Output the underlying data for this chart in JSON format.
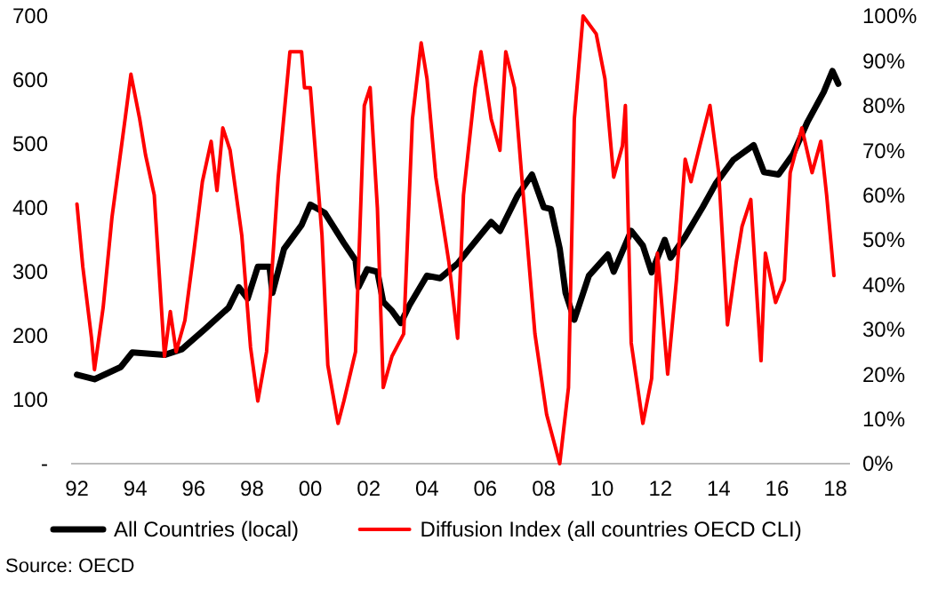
{
  "chart_data": {
    "type": "line",
    "xlim": [
      1991.8,
      2018.5
    ],
    "xticks": [
      {
        "value": 1992,
        "label": "92"
      },
      {
        "value": 1994,
        "label": "94"
      },
      {
        "value": 1996,
        "label": "96"
      },
      {
        "value": 1998,
        "label": "98"
      },
      {
        "value": 2000,
        "label": "00"
      },
      {
        "value": 2002,
        "label": "02"
      },
      {
        "value": 2004,
        "label": "04"
      },
      {
        "value": 2006,
        "label": "06"
      },
      {
        "value": 2008,
        "label": "08"
      },
      {
        "value": 2010,
        "label": "10"
      },
      {
        "value": 2012,
        "label": "12"
      },
      {
        "value": 2014,
        "label": "14"
      },
      {
        "value": 2016,
        "label": "16"
      },
      {
        "value": 2018,
        "label": "18"
      }
    ],
    "ylim": [
      0,
      700
    ],
    "yticks": [
      {
        "value": 0,
        "label": "-"
      },
      100,
      200,
      300,
      400,
      500,
      600,
      700
    ],
    "y2lim": [
      0,
      100
    ],
    "y2ticks": [
      {
        "value": 0,
        "label": "0%"
      },
      {
        "value": 10,
        "label": "10%"
      },
      {
        "value": 20,
        "label": "20%"
      },
      {
        "value": 30,
        "label": "30%"
      },
      {
        "value": 40,
        "label": "40%"
      },
      {
        "value": 50,
        "label": "50%"
      },
      {
        "value": 60,
        "label": "60%"
      },
      {
        "value": 70,
        "label": "70%"
      },
      {
        "value": 80,
        "label": "80%"
      },
      {
        "value": 90,
        "label": "90%"
      },
      {
        "value": 100,
        "label": "100%"
      }
    ],
    "grid": false,
    "legend": "bottom",
    "marker": "none",
    "line_style": "solid",
    "annotations": [
      "Source: OECD"
    ],
    "series": [
      {
        "name": "All Countries (local)",
        "color": "#000000",
        "axis": "y",
        "x": [
          1992.0,
          1992.6,
          1993.5,
          1993.9,
          1995.0,
          1995.6,
          1996.4,
          1997.2,
          1997.55,
          1997.85,
          1998.2,
          1998.6,
          1998.7,
          1999.1,
          1999.7,
          2000.0,
          2000.5,
          2001.15,
          2001.55,
          2001.65,
          2001.95,
          2002.3,
          2002.5,
          2002.8,
          2003.1,
          2003.4,
          2004.0,
          2004.45,
          2005.05,
          2005.45,
          2006.2,
          2006.5,
          2007.1,
          2007.6,
          2008.0,
          2008.25,
          2008.55,
          2008.75,
          2009.05,
          2009.55,
          2010.2,
          2010.4,
          2011.0,
          2011.4,
          2011.7,
          2012.15,
          2012.35,
          2012.85,
          2013.45,
          2013.9,
          2014.5,
          2015.2,
          2015.55,
          2016.05,
          2016.55,
          2017.05,
          2017.6,
          2017.9,
          2018.1
        ],
        "values": [
          139,
          132,
          151,
          174,
          170,
          179,
          211,
          244,
          276,
          258,
          308,
          308,
          267,
          336,
          373,
          405,
          392,
          345,
          318,
          276,
          304,
          300,
          253,
          239,
          220,
          248,
          294,
          290,
          313,
          336,
          378,
          364,
          419,
          452,
          401,
          398,
          336,
          267,
          225,
          294,
          327,
          300,
          364,
          341,
          299,
          350,
          322,
          355,
          401,
          438,
          475,
          498,
          456,
          452,
          484,
          535,
          581,
          614,
          594
        ]
      },
      {
        "name": "Diffusion Index (all countries OECD CLI)",
        "color": "#ff0000",
        "axis": "y2",
        "x": [
          1992.0,
          1992.2,
          1992.5,
          1992.6,
          1992.9,
          1993.2,
          1993.65,
          1993.85,
          1994.15,
          1994.35,
          1994.65,
          1995.0,
          1995.2,
          1995.4,
          1995.7,
          1996.0,
          1996.3,
          1996.6,
          1996.8,
          1997.0,
          1997.25,
          1997.65,
          1997.95,
          1998.2,
          1998.5,
          1998.9,
          1999.3,
          1999.7,
          1999.8,
          2000.0,
          2000.4,
          2000.6,
          2000.95,
          2001.15,
          2001.55,
          2001.85,
          2002.05,
          2002.3,
          2002.5,
          2002.8,
          2003.2,
          2003.5,
          2003.8,
          2004.0,
          2004.3,
          2004.75,
          2005.05,
          2005.25,
          2005.65,
          2005.85,
          2006.2,
          2006.5,
          2006.7,
          2007.0,
          2007.3,
          2007.7,
          2008.1,
          2008.55,
          2008.85,
          2009.05,
          2009.35,
          2009.8,
          2010.1,
          2010.4,
          2010.7,
          2010.8,
          2011.0,
          2011.4,
          2011.7,
          2011.9,
          2012.25,
          2012.55,
          2012.85,
          2013.05,
          2013.35,
          2013.7,
          2014.0,
          2014.3,
          2014.6,
          2014.8,
          2015.1,
          2015.45,
          2015.6,
          2015.95,
          2016.25,
          2016.45,
          2016.85,
          2017.2,
          2017.5,
          2017.7,
          2017.95
        ],
        "values": [
          58,
          44,
          28,
          21,
          35,
          55,
          77,
          87,
          77,
          69,
          60,
          24,
          34,
          25,
          32,
          47,
          63,
          72,
          61,
          75,
          70,
          51,
          26,
          14,
          25,
          64,
          92,
          92,
          84,
          84,
          51,
          22,
          9,
          14,
          25,
          80,
          84,
          57,
          17,
          24,
          29,
          77,
          94,
          86,
          64,
          45,
          28,
          60,
          84,
          92,
          77,
          70,
          92,
          84,
          60,
          29,
          11,
          0,
          17,
          77,
          100,
          96,
          86,
          64,
          71,
          80,
          27,
          9,
          19,
          47,
          20,
          41,
          68,
          63,
          71,
          80,
          65,
          31,
          45,
          53,
          59,
          23,
          47,
          36,
          41,
          65,
          75,
          65,
          72,
          60,
          42
        ]
      }
    ]
  }
}
